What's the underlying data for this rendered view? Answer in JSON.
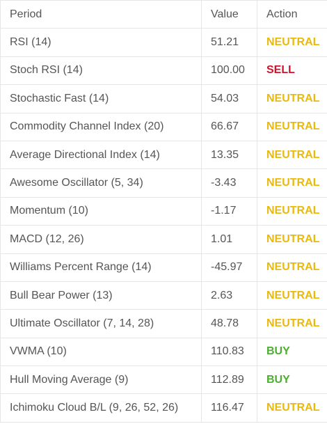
{
  "table": {
    "header": [
      "Period",
      "Value",
      "Action"
    ],
    "rows": [
      {
        "period": "RSI (14)",
        "value": "51.21",
        "action": "NEUTRAL",
        "color": "#e8b90e"
      },
      {
        "period": "Stoch RSI (14)",
        "value": "100.00",
        "action": "SELL",
        "color": "#d0112b"
      },
      {
        "period": "Stochastic Fast (14)",
        "value": "54.03",
        "action": "NEUTRAL",
        "color": "#e8b90e"
      },
      {
        "period": "Commodity Channel Index (20)",
        "value": "66.67",
        "action": "NEUTRAL",
        "color": "#e8b90e"
      },
      {
        "period": "Average Directional Index (14)",
        "value": "13.35",
        "action": "NEUTRAL",
        "color": "#e8b90e"
      },
      {
        "period": "Awesome Oscillator (5, 34)",
        "value": "-3.43",
        "action": "NEUTRAL",
        "color": "#e8b90e"
      },
      {
        "period": "Momentum (10)",
        "value": "-1.17",
        "action": "NEUTRAL",
        "color": "#e8b90e"
      },
      {
        "period": "MACD (12, 26)",
        "value": "1.01",
        "action": "NEUTRAL",
        "color": "#e8b90e"
      },
      {
        "period": "Williams Percent Range (14)",
        "value": "-45.97",
        "action": "NEUTRAL",
        "color": "#e8b90e"
      },
      {
        "period": "Bull Bear Power (13)",
        "value": "2.63",
        "action": "NEUTRAL",
        "color": "#e8b90e"
      },
      {
        "period": "Ultimate Oscillator (7, 14, 28)",
        "value": "48.78",
        "action": "NEUTRAL",
        "color": "#e8b90e"
      },
      {
        "period": "VWMA (10)",
        "value": "110.83",
        "action": "BUY",
        "color": "#4cae2f"
      },
      {
        "period": "Hull Moving Average (9)",
        "value": "112.89",
        "action": "BUY",
        "color": "#4cae2f"
      },
      {
        "period": "Ichimoku Cloud B/L (9, 26, 52, 26)",
        "value": "116.47",
        "action": "NEUTRAL",
        "color": "#e8b90e"
      }
    ]
  }
}
